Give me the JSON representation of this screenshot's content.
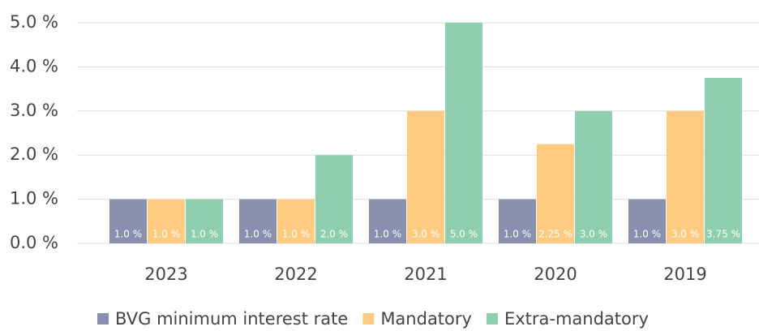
{
  "chart_data": {
    "type": "bar",
    "categories": [
      "2023",
      "2022",
      "2021",
      "2020",
      "2019"
    ],
    "series": [
      {
        "name": "BVG minimum interest rate",
        "color": "#8b8fae",
        "values": [
          1.0,
          1.0,
          1.0,
          1.0,
          1.0
        ],
        "value_labels": [
          "1.0 %",
          "1.0 %",
          "1.0 %",
          "1.0 %",
          "1.0 %"
        ]
      },
      {
        "name": "Mandatory",
        "color": "#fecb80",
        "values": [
          1.0,
          1.0,
          3.0,
          2.25,
          3.0
        ],
        "value_labels": [
          "1.0 %",
          "1.0 %",
          "3.0 %",
          "2.25 %",
          "3.0 %"
        ]
      },
      {
        "name": "Extra-mandatory",
        "color": "#8fcfb0",
        "values": [
          1.0,
          2.0,
          5.0,
          3.0,
          3.75
        ],
        "value_labels": [
          "1.0 %",
          "2.0 %",
          "5.0 %",
          "3.0 %",
          "3.75 %"
        ]
      }
    ],
    "ylim": [
      0,
      5
    ],
    "yticks": [
      {
        "value": 0,
        "label": "0.0 %"
      },
      {
        "value": 1,
        "label": "1.0 %"
      },
      {
        "value": 2,
        "label": "2.0 %"
      },
      {
        "value": 3,
        "label": "3.0 %"
      },
      {
        "value": 4,
        "label": "4.0 %"
      },
      {
        "value": 5,
        "label": "5.0 %"
      }
    ],
    "grid": true,
    "legend": "bottom"
  }
}
